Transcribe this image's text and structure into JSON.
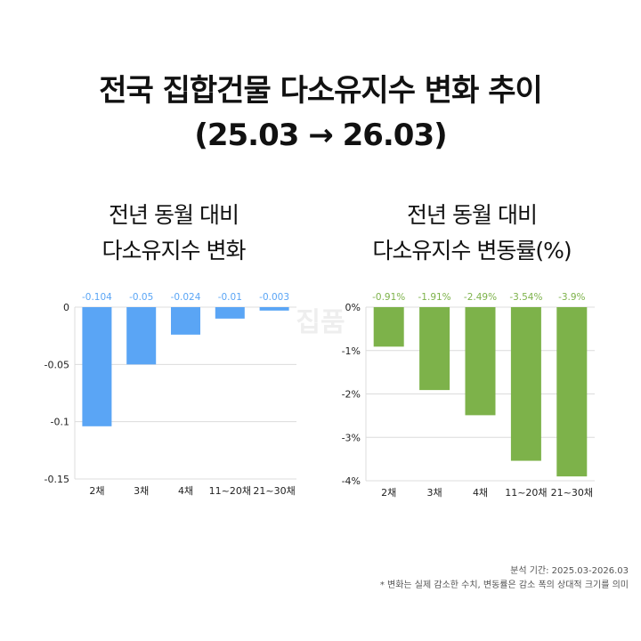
{
  "title_line1": "전국 집합건물 다소유지수 변화 추이",
  "title_line2": "(25.03 → 26.03)",
  "watermark": "집품",
  "chart_data": [
    {
      "type": "bar",
      "title_line1": "전년 동월 대비",
      "title_line2": "다소유지수 변화",
      "categories": [
        "2채",
        "3채",
        "4채",
        "11~20채",
        "21~30채"
      ],
      "values": [
        -0.104,
        -0.05,
        -0.024,
        -0.01,
        -0.003
      ],
      "data_labels": [
        "-0.104",
        "-0.05",
        "-0.024",
        "-0.01",
        "-0.003"
      ],
      "ylim": [
        -0.15,
        0
      ],
      "yticks": [
        0,
        -0.05,
        -0.1,
        -0.15
      ],
      "ytick_labels": [
        "0",
        "-0.05",
        "-0.1",
        "-0.15"
      ],
      "grid": true,
      "bar_color": "#5aa5f5",
      "label_color": "#5aa5f5"
    },
    {
      "type": "bar",
      "title_line1": "전년 동월 대비",
      "title_line2": "다소유지수 변동률(%)",
      "categories": [
        "2채",
        "3채",
        "4채",
        "11~20채",
        "21~30채"
      ],
      "values": [
        -0.91,
        -1.91,
        -2.49,
        -3.54,
        -3.9
      ],
      "data_labels": [
        "-0.91%",
        "-1.91%",
        "-2.49%",
        "-3.54%",
        "-3.9%"
      ],
      "ylim": [
        -4,
        0
      ],
      "yticks": [
        0,
        -1,
        -2,
        -3,
        -4
      ],
      "ytick_labels": [
        "0%",
        "-1%",
        "-2%",
        "-3%",
        "-4%"
      ],
      "grid": true,
      "bar_color": "#7db24a",
      "label_color": "#7db24a"
    }
  ],
  "footer": {
    "period": "분석 기간: 2025.03-2026.03",
    "note": "* 변화는 실제 감소한 수치, 변동률은 감소 폭의 상대적 크기를 의미"
  }
}
